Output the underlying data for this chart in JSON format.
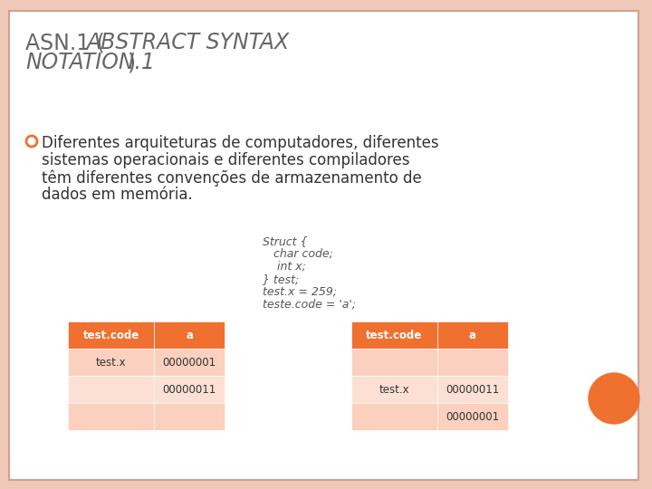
{
  "bg_color": "#f0c8b8",
  "slide_bg": "#ffffff",
  "border_color": "#d4a090",
  "title_line1_normal": "ASN.1 (",
  "title_line1_italic": "ABSTRACT SYNTAX",
  "title_line2_italic": "NOTATION.1",
  "title_line2_normal": ")",
  "title_color": "#666666",
  "title_fontsize": 17,
  "bullet_color": "#f07030",
  "bullet_text_line1": "Diferentes arquiteturas de computadores, diferentes",
  "bullet_text_line2": "sistemas operacionais e diferentes compiladores",
  "bullet_text_line3": "têm diferentes convenções de armazenamento de",
  "bullet_text_line4": "dados em memória.",
  "bullet_fontsize": 12,
  "bullet_text_color": "#333333",
  "code_lines": [
    "Struct {",
    "   char code;",
    "    int x;",
    "} test;",
    "test.x = 259;",
    "teste.code = 'a';"
  ],
  "code_fontsize": 9,
  "code_color": "#555555",
  "header_color": "#f07030",
  "header_text_color": "#ffffff",
  "row_colors": [
    "#fbd0be",
    "#fce0d4",
    "#fbd0be"
  ],
  "table1_data": [
    [
      "test.code",
      "a"
    ],
    [
      "test.x",
      "00000001"
    ],
    [
      "",
      "00000011"
    ],
    [
      "",
      ""
    ]
  ],
  "table2_data": [
    [
      "test.code",
      "a"
    ],
    [
      "",
      ""
    ],
    [
      "test.x",
      "00000011"
    ],
    [
      "",
      "00000001"
    ]
  ],
  "orange_circle_color": "#f07030"
}
